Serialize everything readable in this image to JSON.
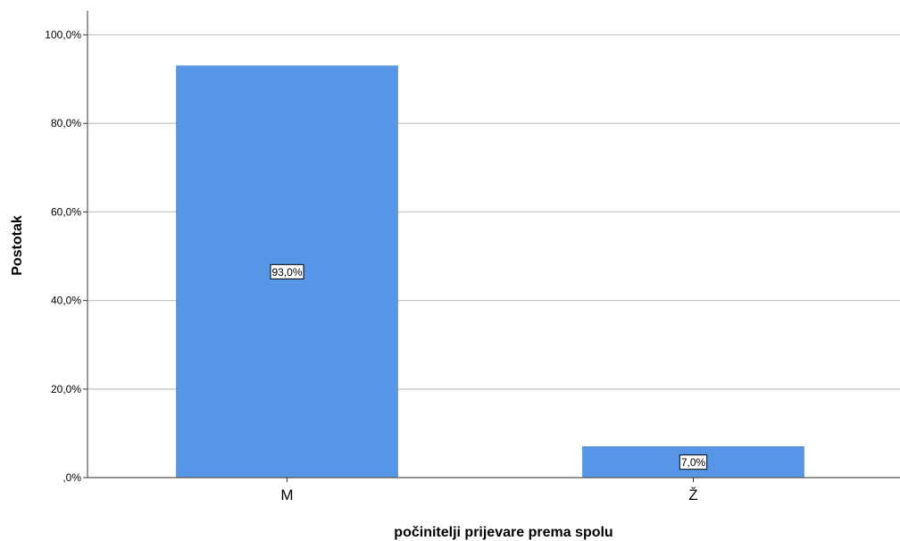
{
  "chart_data": {
    "type": "bar",
    "title": "",
    "xlabel": "počinitelji prijevare prema spolu",
    "ylabel": "Postotak",
    "categories": [
      "M",
      "Ž"
    ],
    "values": [
      93.0,
      7.0
    ],
    "data_labels": [
      "93,0%",
      "7,0%"
    ],
    "ylim": [
      0,
      100
    ],
    "yticks": [
      0,
      20,
      40,
      60,
      80,
      100
    ],
    "ytick_labels": [
      ",0%",
      "20,0%",
      "40,0%",
      "60,0%",
      "80,0%",
      "100,0%"
    ],
    "grid": true,
    "bar_color": "#5795e6"
  }
}
